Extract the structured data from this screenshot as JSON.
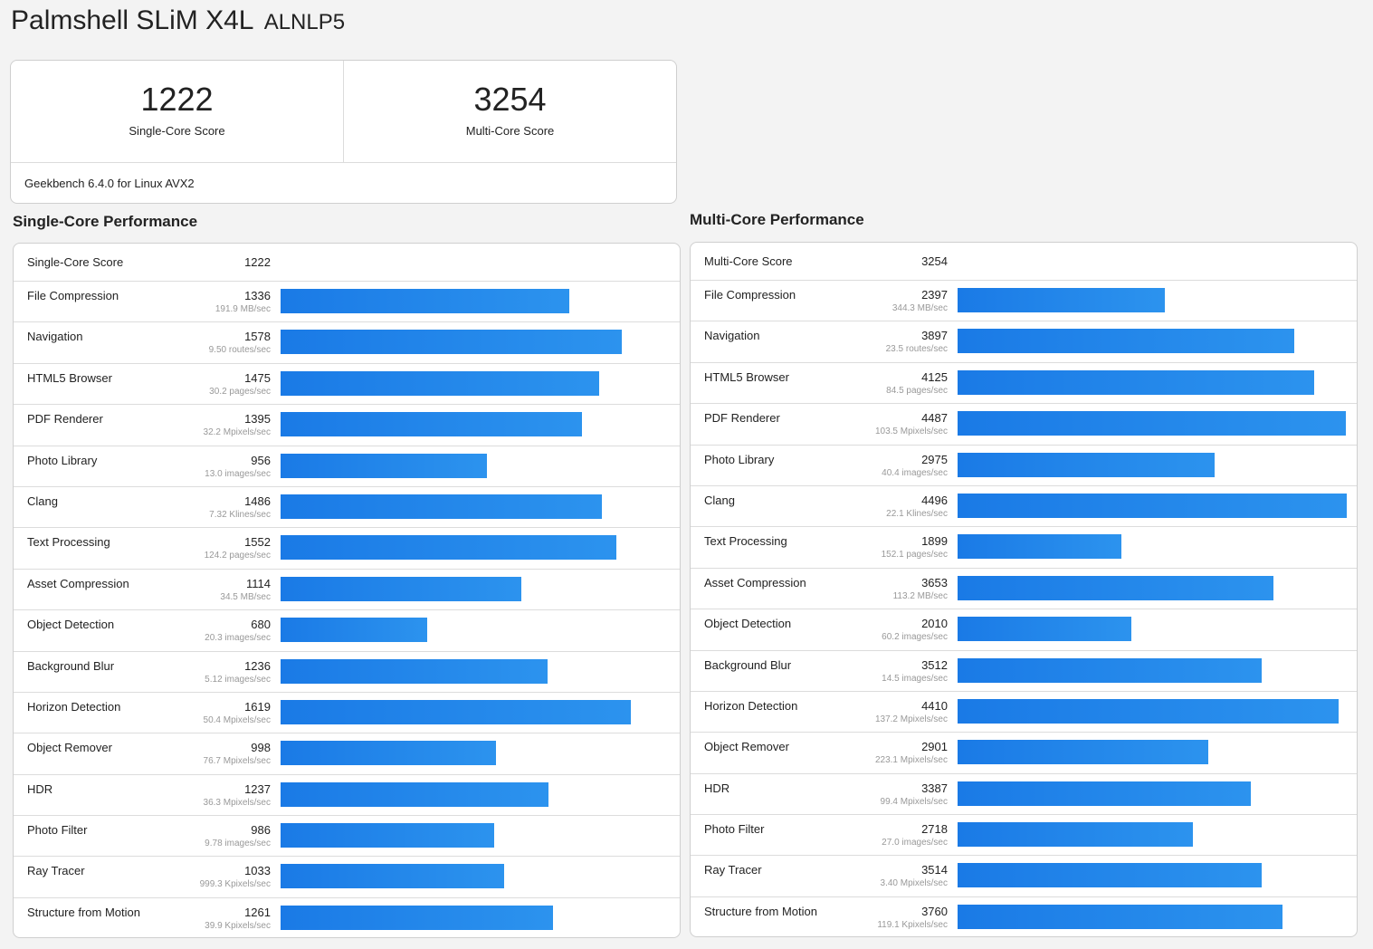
{
  "header": {
    "device": "Palmshell SLiM X4L",
    "model": "ALNLP5"
  },
  "scores": {
    "single_value": "1222",
    "single_label": "Single-Core Score",
    "multi_value": "3254",
    "multi_label": "Multi-Core Score",
    "version": "Geekbench 6.4.0 for Linux AVX2"
  },
  "single": {
    "title": "Single-Core Performance",
    "score_label": "Single-Core Score",
    "score_value": "1222",
    "bar_max": 1800,
    "items": [
      {
        "name": "File Compression",
        "score": 1336,
        "unit": "191.9 MB/sec"
      },
      {
        "name": "Navigation",
        "score": 1578,
        "unit": "9.50 routes/sec"
      },
      {
        "name": "HTML5 Browser",
        "score": 1475,
        "unit": "30.2 pages/sec"
      },
      {
        "name": "PDF Renderer",
        "score": 1395,
        "unit": "32.2 Mpixels/sec"
      },
      {
        "name": "Photo Library",
        "score": 956,
        "unit": "13.0 images/sec"
      },
      {
        "name": "Clang",
        "score": 1486,
        "unit": "7.32 Klines/sec"
      },
      {
        "name": "Text Processing",
        "score": 1552,
        "unit": "124.2 pages/sec"
      },
      {
        "name": "Asset Compression",
        "score": 1114,
        "unit": "34.5 MB/sec"
      },
      {
        "name": "Object Detection",
        "score": 680,
        "unit": "20.3 images/sec"
      },
      {
        "name": "Background Blur",
        "score": 1236,
        "unit": "5.12 images/sec"
      },
      {
        "name": "Horizon Detection",
        "score": 1619,
        "unit": "50.4 Mpixels/sec"
      },
      {
        "name": "Object Remover",
        "score": 998,
        "unit": "76.7 Mpixels/sec"
      },
      {
        "name": "HDR",
        "score": 1237,
        "unit": "36.3 Mpixels/sec"
      },
      {
        "name": "Photo Filter",
        "score": 986,
        "unit": "9.78 images/sec"
      },
      {
        "name": "Ray Tracer",
        "score": 1033,
        "unit": "999.3 Kpixels/sec"
      },
      {
        "name": "Structure from Motion",
        "score": 1261,
        "unit": "39.9 Kpixels/sec"
      }
    ]
  },
  "multi": {
    "title": "Multi-Core Performance",
    "score_label": "Multi-Core Score",
    "score_value": "3254",
    "bar_max": 4500,
    "items": [
      {
        "name": "File Compression",
        "score": 2397,
        "unit": "344.3 MB/sec"
      },
      {
        "name": "Navigation",
        "score": 3897,
        "unit": "23.5 routes/sec"
      },
      {
        "name": "HTML5 Browser",
        "score": 4125,
        "unit": "84.5 pages/sec"
      },
      {
        "name": "PDF Renderer",
        "score": 4487,
        "unit": "103.5 Mpixels/sec"
      },
      {
        "name": "Photo Library",
        "score": 2975,
        "unit": "40.4 images/sec"
      },
      {
        "name": "Clang",
        "score": 4496,
        "unit": "22.1 Klines/sec"
      },
      {
        "name": "Text Processing",
        "score": 1899,
        "unit": "152.1 pages/sec"
      },
      {
        "name": "Asset Compression",
        "score": 3653,
        "unit": "113.2 MB/sec"
      },
      {
        "name": "Object Detection",
        "score": 2010,
        "unit": "60.2 images/sec"
      },
      {
        "name": "Background Blur",
        "score": 3512,
        "unit": "14.5 images/sec"
      },
      {
        "name": "Horizon Detection",
        "score": 4410,
        "unit": "137.2 Mpixels/sec"
      },
      {
        "name": "Object Remover",
        "score": 2901,
        "unit": "223.1 Mpixels/sec"
      },
      {
        "name": "HDR",
        "score": 3387,
        "unit": "99.4 Mpixels/sec"
      },
      {
        "name": "Photo Filter",
        "score": 2718,
        "unit": "27.0 images/sec"
      },
      {
        "name": "Ray Tracer",
        "score": 3514,
        "unit": "3.40 Mpixels/sec"
      },
      {
        "name": "Structure from Motion",
        "score": 3760,
        "unit": "119.1 Kpixels/sec"
      }
    ]
  },
  "colors": {
    "bar_start": "#1a7ae6",
    "bar_end": "#2c93ee"
  }
}
